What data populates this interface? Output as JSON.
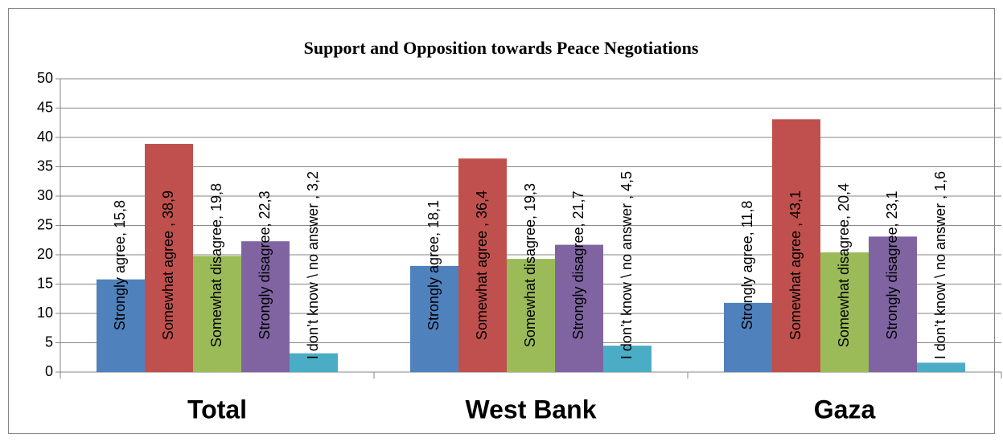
{
  "chart_data": {
    "type": "bar",
    "title": "Support and Opposition towards Peace Negotiations",
    "categories": [
      "Total",
      "West Bank",
      "Gaza"
    ],
    "series": [
      {
        "color": "#4f81bd",
        "values": [
          15.8,
          18.1,
          11.8
        ],
        "value_labels": [
          "Strongly agree, 15,8",
          "Strongly agree, 18,1",
          "Strongly agree, 11,8"
        ]
      },
      {
        "color": "#c0504d",
        "values": [
          38.9,
          36.4,
          43.1
        ],
        "value_labels": [
          "Somewhat agree , 38,9",
          "Somewhat agree , 36,4",
          "Somewhat agree , 43,1"
        ]
      },
      {
        "color": "#9bbb59",
        "values": [
          19.8,
          19.3,
          20.4
        ],
        "value_labels": [
          "Somewhat disagree, 19,8",
          "Somewhat disagree, 19,3",
          "Somewhat disagree, 20,4"
        ]
      },
      {
        "color": "#8064a2",
        "values": [
          22.3,
          21.7,
          23.1
        ],
        "value_labels": [
          "Strongly disagree, 22,3",
          "Strongly disagree, 21,7",
          "Strongly disagree, 23,1"
        ]
      },
      {
        "color": "#4bacc6",
        "values": [
          3.2,
          4.5,
          1.6
        ],
        "value_labels": [
          "I don’t know \\ no answer , 3,2",
          "I don’t know \\ no answer , 4,5",
          "I don’t know \\ no answer , 1,6"
        ]
      }
    ],
    "ylim": [
      0,
      50
    ],
    "yticks": [
      0,
      5,
      10,
      15,
      20,
      25,
      30,
      35,
      40,
      45,
      50
    ],
    "grid": true
  }
}
